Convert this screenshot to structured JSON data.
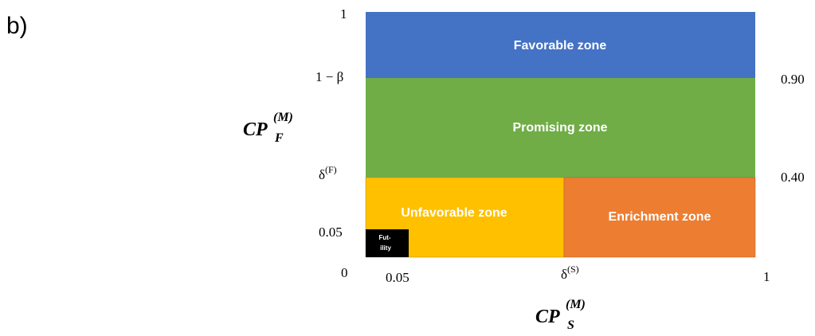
{
  "panel_label": "b)",
  "zones": [
    {
      "label": "Favorable zone"
    },
    {
      "label": "Promising zone"
    },
    {
      "label": "Unfavorable zone"
    },
    {
      "label": "Enrichment zone"
    },
    {
      "label": "Fut-"
    },
    {
      "label": "ility"
    }
  ],
  "left_ticks": [
    "1",
    "1 − β",
    "0.05",
    "0"
  ],
  "left_delta": {
    "base": "δ",
    "sup": "(F)"
  },
  "right_ticks": [
    "0.90",
    "0.40"
  ],
  "bottom_ticks": [
    "0.05",
    "1"
  ],
  "bottom_delta": {
    "base": "δ",
    "sup": "(S)"
  },
  "y_title": {
    "base": "CP",
    "sub": "F",
    "sup": "(M)"
  },
  "x_title": {
    "base": "CP",
    "sub": "S",
    "sup": "(M)"
  }
}
